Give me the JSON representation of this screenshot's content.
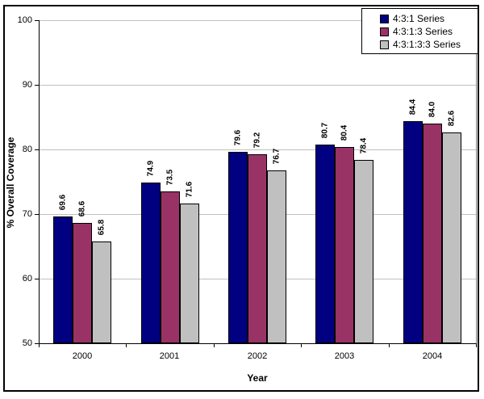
{
  "window": {
    "background": "#ffffff",
    "border_color": "#000000"
  },
  "chart_data": {
    "type": "bar",
    "title": "",
    "categories": [
      "2000",
      "2001",
      "2002",
      "2003",
      "2004"
    ],
    "series": [
      {
        "name": "4:3:1 Series",
        "color": "#000080",
        "values": [
          69.6,
          74.9,
          79.6,
          80.7,
          84.4
        ],
        "labels": [
          "69.6",
          "74.9",
          "79.6",
          "80.7",
          "84.4"
        ]
      },
      {
        "name": "4:3:1:3 Series",
        "color": "#993366",
        "values": [
          68.6,
          73.5,
          79.2,
          80.4,
          84.0
        ],
        "labels": [
          "68.6",
          "73.5",
          "79.2",
          "80.4",
          "84.0"
        ]
      },
      {
        "name": "4:3:1:3:3 Series",
        "color": "#c0c0c0",
        "values": [
          65.8,
          71.6,
          76.7,
          78.4,
          82.6
        ],
        "labels": [
          "65.8",
          "71.6",
          "76.7",
          "78.4",
          "82.6"
        ]
      }
    ],
    "xlabel": "Year",
    "ylabel": "% Overall Coverage",
    "ylim": [
      50,
      100
    ],
    "ytick_step": 10,
    "yticks": [
      "50",
      "60",
      "70",
      "80",
      "90",
      "100"
    ],
    "grid": true,
    "gridline_color": "#c0c0c0",
    "axis_color": "#000000",
    "plot_border_color": "#808080",
    "plot_background": "#ffffff",
    "bar_border_color": "#000000",
    "legend_position": "top-right"
  }
}
